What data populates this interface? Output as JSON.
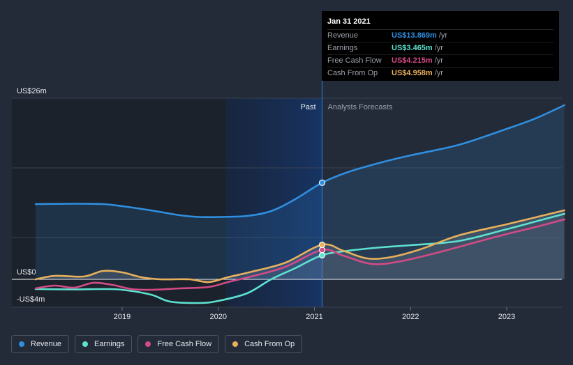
{
  "chart_data": {
    "type": "area",
    "y_unit_labels": {
      "top": "US$26m",
      "zero": "US$0",
      "bottom": "-US$4m"
    },
    "ylim": [
      -4,
      26
    ],
    "xlim": [
      2018.1,
      2023.6
    ],
    "x_ticks": [
      "2019",
      "2020",
      "2021",
      "2022",
      "2023"
    ],
    "x_tick_values": [
      2019,
      2020,
      2021,
      2022,
      2023
    ],
    "past_label": "Past",
    "forecast_label": "Analysts Forecasts",
    "divider_x": 2021.08,
    "past_shade_start": 2020.08,
    "series": [
      {
        "name": "Revenue",
        "color": "#2f8fe0",
        "fill": true,
        "points": [
          [
            2018.1,
            10.8
          ],
          [
            2018.5,
            10.85
          ],
          [
            2018.8,
            10.8
          ],
          [
            2019.0,
            10.5
          ],
          [
            2019.3,
            9.9
          ],
          [
            2019.6,
            9.2
          ],
          [
            2019.8,
            8.95
          ],
          [
            2020.0,
            8.95
          ],
          [
            2020.3,
            9.1
          ],
          [
            2020.55,
            9.8
          ],
          [
            2020.8,
            11.5
          ],
          [
            2021.08,
            13.869
          ],
          [
            2021.35,
            15.4
          ],
          [
            2021.7,
            16.8
          ],
          [
            2022.0,
            17.8
          ],
          [
            2022.5,
            19.3
          ],
          [
            2023.0,
            21.6
          ],
          [
            2023.3,
            23.1
          ],
          [
            2023.6,
            25.0
          ]
        ]
      },
      {
        "name": "Earnings",
        "color": "#5ee2cf",
        "fill": false,
        "points": [
          [
            2018.1,
            -1.4
          ],
          [
            2018.5,
            -1.45
          ],
          [
            2018.8,
            -1.4
          ],
          [
            2019.0,
            -1.5
          ],
          [
            2019.3,
            -2.2
          ],
          [
            2019.5,
            -3.2
          ],
          [
            2019.8,
            -3.4
          ],
          [
            2020.0,
            -3.1
          ],
          [
            2020.3,
            -2.0
          ],
          [
            2020.55,
            0.0
          ],
          [
            2020.8,
            1.6
          ],
          [
            2021.08,
            3.465
          ],
          [
            2021.35,
            4.1
          ],
          [
            2021.7,
            4.6
          ],
          [
            2022.0,
            4.9
          ],
          [
            2022.5,
            5.5
          ],
          [
            2023.0,
            7.2
          ],
          [
            2023.3,
            8.3
          ],
          [
            2023.6,
            9.4
          ]
        ]
      },
      {
        "name": "Free Cash Flow",
        "color": "#d24b86",
        "fill": false,
        "points": [
          [
            2018.1,
            -1.3
          ],
          [
            2018.3,
            -0.9
          ],
          [
            2018.5,
            -1.2
          ],
          [
            2018.7,
            -0.5
          ],
          [
            2018.9,
            -0.8
          ],
          [
            2019.1,
            -1.4
          ],
          [
            2019.3,
            -1.5
          ],
          [
            2019.6,
            -1.3
          ],
          [
            2019.9,
            -1.1
          ],
          [
            2020.1,
            -0.4
          ],
          [
            2020.4,
            0.6
          ],
          [
            2020.7,
            1.8
          ],
          [
            2021.08,
            4.215
          ],
          [
            2021.3,
            3.4
          ],
          [
            2021.6,
            2.2
          ],
          [
            2021.9,
            2.6
          ],
          [
            2022.3,
            3.9
          ],
          [
            2022.7,
            5.4
          ],
          [
            2023.0,
            6.5
          ],
          [
            2023.3,
            7.5
          ],
          [
            2023.6,
            8.6
          ]
        ]
      },
      {
        "name": "Cash From Op",
        "color": "#e8b05c",
        "fill": false,
        "points": [
          [
            2018.1,
            0.0
          ],
          [
            2018.3,
            0.5
          ],
          [
            2018.6,
            0.4
          ],
          [
            2018.8,
            1.2
          ],
          [
            2019.0,
            1.0
          ],
          [
            2019.2,
            0.3
          ],
          [
            2019.4,
            0.0
          ],
          [
            2019.7,
            0.0
          ],
          [
            2019.9,
            -0.4
          ],
          [
            2020.1,
            0.3
          ],
          [
            2020.35,
            1.1
          ],
          [
            2020.7,
            2.4
          ],
          [
            2021.08,
            4.958
          ],
          [
            2021.3,
            4.1
          ],
          [
            2021.55,
            3.0
          ],
          [
            2021.8,
            3.2
          ],
          [
            2022.1,
            4.3
          ],
          [
            2022.5,
            6.3
          ],
          [
            2023.0,
            7.9
          ],
          [
            2023.3,
            8.9
          ],
          [
            2023.6,
            9.9
          ]
        ]
      }
    ],
    "highlight_x": 2021.08
  },
  "tooltip": {
    "date": "Jan 31 2021",
    "rows": [
      {
        "label": "Revenue",
        "value": "US$13.869m",
        "unit": "/yr",
        "color": "#2f8fe0"
      },
      {
        "label": "Earnings",
        "value": "US$3.465m",
        "unit": "/yr",
        "color": "#5ee2cf"
      },
      {
        "label": "Free Cash Flow",
        "value": "US$4.215m",
        "unit": "/yr",
        "color": "#d24b86"
      },
      {
        "label": "Cash From Op",
        "value": "US$4.958m",
        "unit": "/yr",
        "color": "#e8b05c"
      }
    ]
  },
  "legend": [
    {
      "label": "Revenue",
      "color": "#2f8fe0"
    },
    {
      "label": "Earnings",
      "color": "#5ee2cf"
    },
    {
      "label": "Free Cash Flow",
      "color": "#d24b86"
    },
    {
      "label": "Cash From Op",
      "color": "#e8b05c"
    }
  ]
}
